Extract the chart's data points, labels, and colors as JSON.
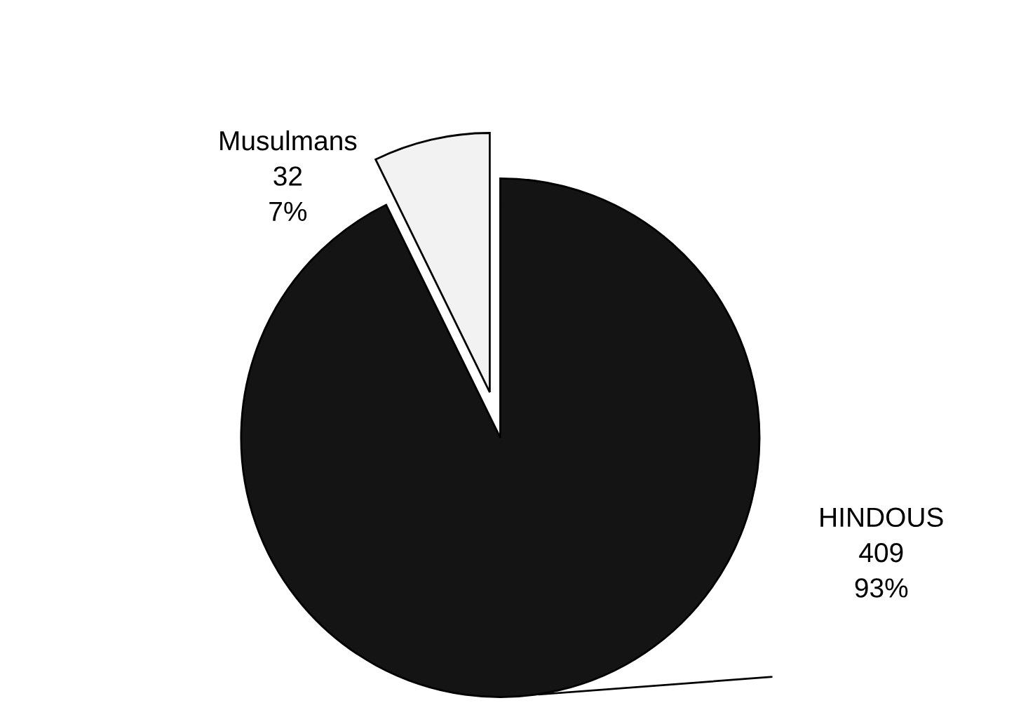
{
  "chart_data": {
    "type": "pie",
    "categories": [
      "Musulmans",
      "HINDOUS"
    ],
    "values": [
      32,
      409
    ],
    "value_labels": [
      "32\n7%",
      "409\n93%"
    ],
    "colors": [
      "#f2f2f2",
      "#141414"
    ],
    "legend": false
  }
}
